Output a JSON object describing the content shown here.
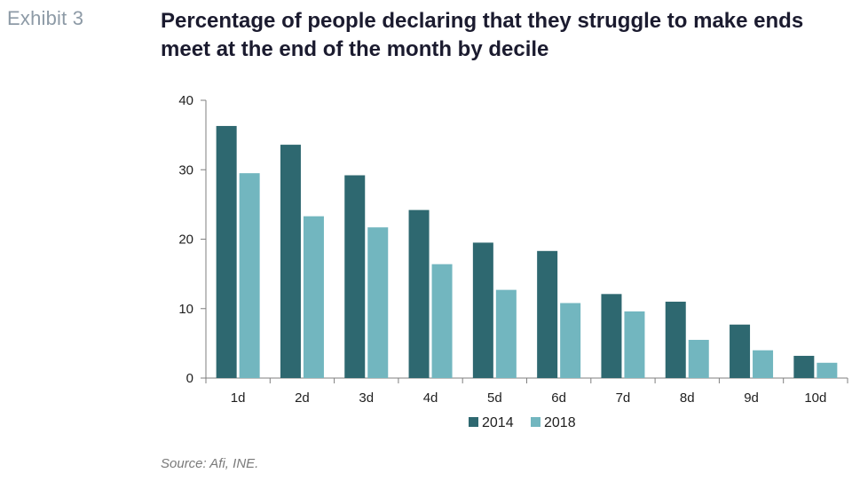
{
  "exhibit_label": "Exhibit 3",
  "title": "Percentage of people declaring that they struggle to make ends meet at the end of the month by decile",
  "source": "Source: Afi, INE.",
  "colors": {
    "series_2014": "#2e6870",
    "series_2018": "#72b6bf",
    "axis": "#7f7f7f"
  },
  "chart_data": {
    "type": "bar",
    "title": "Percentage of people declaring that they struggle to make ends meet at the end of the month by decile",
    "xlabel": "",
    "ylabel": "",
    "categories": [
      "1d",
      "2d",
      "3d",
      "4d",
      "5d",
      "6d",
      "7d",
      "8d",
      "9d",
      "10d"
    ],
    "series": [
      {
        "name": "2014",
        "values": [
          36.3,
          33.6,
          29.2,
          24.2,
          19.5,
          18.3,
          12.1,
          11.0,
          7.7,
          3.2
        ]
      },
      {
        "name": "2018",
        "values": [
          29.5,
          23.3,
          21.7,
          16.4,
          12.7,
          10.8,
          9.6,
          5.5,
          4.0,
          2.2
        ]
      }
    ],
    "ylim": [
      0,
      40
    ],
    "yticks": [
      0,
      10,
      20,
      30,
      40
    ],
    "grid": false,
    "legend": "bottom"
  }
}
